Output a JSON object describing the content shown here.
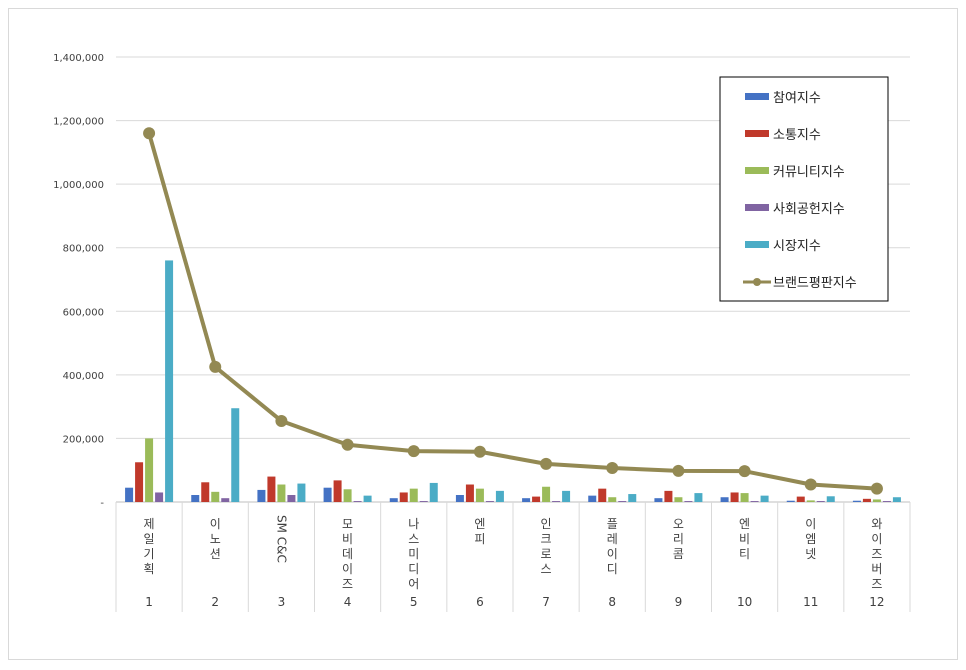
{
  "chart_data": {
    "type": "bar",
    "ylim": [
      0,
      1400000
    ],
    "y_ticks": [
      "-",
      "200,000",
      "400,000",
      "600,000",
      "800,000",
      "1,000,000",
      "1,200,000",
      "1,400,000"
    ],
    "grid": true,
    "legend_position": "top-right",
    "categories": [
      "제일기획",
      "이노션",
      "SM C&C",
      "모비데이즈",
      "나스미디어",
      "엔피",
      "인크로스",
      "플레이디",
      "오리콤",
      "엔비티",
      "이엠넷",
      "와이즈버즈"
    ],
    "ranks": [
      "1",
      "2",
      "3",
      "4",
      "5",
      "6",
      "7",
      "8",
      "9",
      "10",
      "11",
      "12"
    ],
    "series": [
      {
        "name": "참여지수",
        "color": "#4472C4",
        "kind": "bar",
        "values": [
          45000,
          22000,
          38000,
          45000,
          12000,
          22000,
          12000,
          20000,
          12000,
          15000,
          4000,
          4000
        ]
      },
      {
        "name": "소통지수",
        "color": "#C0392B",
        "kind": "bar",
        "values": [
          125000,
          62000,
          80000,
          68000,
          30000,
          55000,
          17000,
          42000,
          35000,
          30000,
          17000,
          10000
        ]
      },
      {
        "name": "커뮤니티지수",
        "color": "#9BBB59",
        "kind": "bar",
        "values": [
          200000,
          32000,
          55000,
          40000,
          42000,
          42000,
          48000,
          15000,
          15000,
          28000,
          5000,
          8000
        ]
      },
      {
        "name": "사회공헌지수",
        "color": "#8064A2",
        "kind": "bar",
        "values": [
          30000,
          12000,
          22000,
          3000,
          3000,
          3000,
          3000,
          3000,
          3000,
          3000,
          3000,
          3000
        ]
      },
      {
        "name": "시장지수",
        "color": "#4BACC6",
        "kind": "bar",
        "values": [
          760000,
          295000,
          58000,
          20000,
          60000,
          35000,
          35000,
          25000,
          28000,
          20000,
          18000,
          15000
        ]
      },
      {
        "name": "브랜드평판지수",
        "color": "#938953",
        "kind": "line",
        "values": [
          1160000,
          425000,
          255000,
          180000,
          160000,
          158000,
          120000,
          107000,
          98000,
          97000,
          55000,
          42000
        ]
      }
    ]
  }
}
